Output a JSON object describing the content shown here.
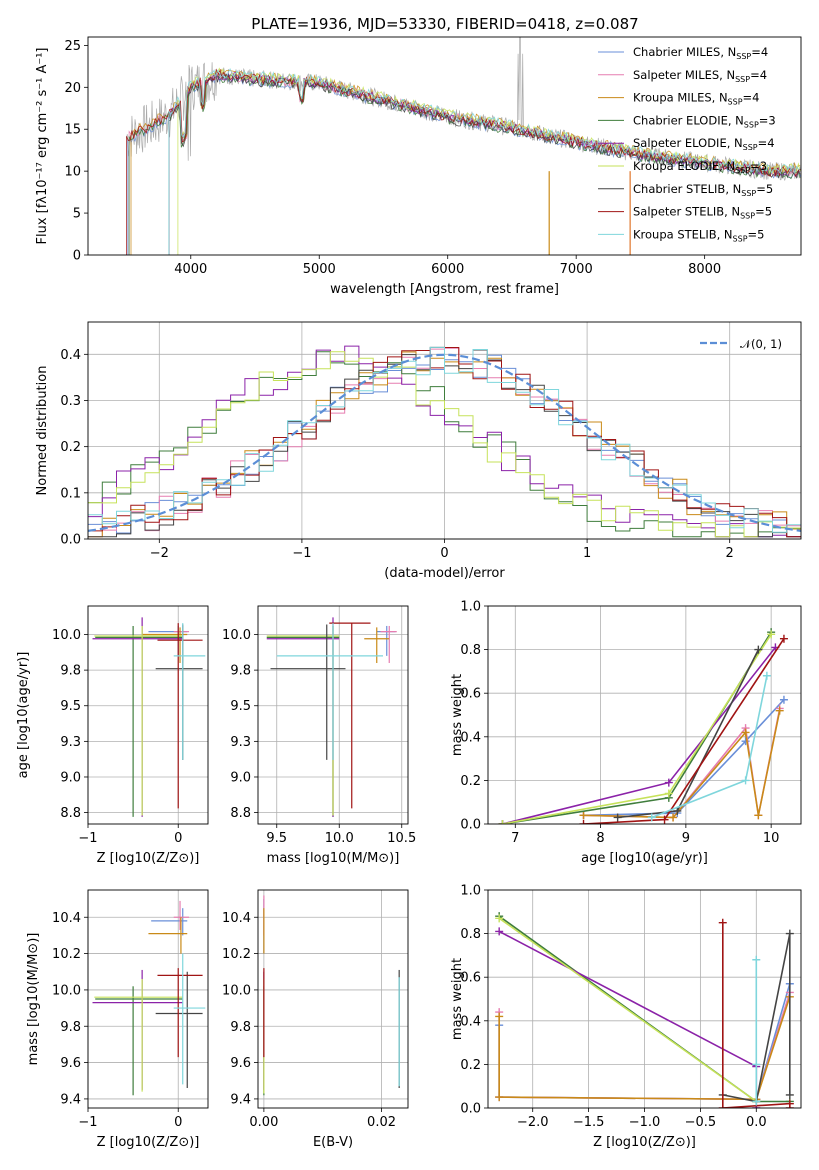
{
  "figure": {
    "title": "PLATE=1936, MJD=53330, FIBERID=0418, z=0.087"
  },
  "series_styles": [
    {
      "name": "Chabrier MILES",
      "nssp": "4",
      "color": "#6a8fd8"
    },
    {
      "name": "Salpeter MILES",
      "nssp": "4",
      "color": "#e67db0"
    },
    {
      "name": "Kroupa MILES",
      "nssp": "4",
      "color": "#c98a18"
    },
    {
      "name": "Chabrier ELODIE",
      "nssp": "3",
      "color": "#3f7d3c"
    },
    {
      "name": "Salpeter ELODIE",
      "nssp": "4",
      "color": "#8b22a8"
    },
    {
      "name": "Kroupa ELODIE",
      "nssp": "3",
      "color": "#c6e25a"
    },
    {
      "name": "Chabrier STELIB",
      "nssp": "5",
      "color": "#444444"
    },
    {
      "name": "Salpeter STELIB",
      "nssp": "5",
      "color": "#a01414"
    },
    {
      "name": "Kroupa STELIB",
      "nssp": "5",
      "color": "#7fd6dc"
    }
  ],
  "chart_data": [
    {
      "id": "spectrum",
      "type": "line",
      "xlabel": "wavelength [Angstrom, rest frame]",
      "ylabel": "Flux [fλ10⁻¹⁷ erg cm⁻² s⁻¹ A⁻¹]",
      "xlim": [
        3200,
        8750
      ],
      "ylim": [
        0,
        26
      ],
      "xticks": [
        4000,
        5000,
        6000,
        7000,
        8000
      ],
      "yticks": [
        0,
        5,
        10,
        15,
        20,
        25
      ],
      "grid": false,
      "legend": "upper right",
      "observed_color": "#aaaaaa",
      "continuum": [
        [
          3500,
          14
        ],
        [
          3700,
          15.5
        ],
        [
          3850,
          17
        ],
        [
          4000,
          20
        ],
        [
          4200,
          21.5
        ],
        [
          4500,
          21
        ],
        [
          5000,
          20.5
        ],
        [
          5500,
          18.5
        ],
        [
          6000,
          16.5
        ],
        [
          6500,
          15.2
        ],
        [
          7000,
          13.5
        ],
        [
          7500,
          12
        ],
        [
          8000,
          11
        ],
        [
          8500,
          10
        ]
      ]
    },
    {
      "id": "residuals",
      "type": "line",
      "xlabel": "(data-model)/error",
      "ylabel": "Normed distribution",
      "xlim": [
        -2.5,
        2.5
      ],
      "ylim": [
        0,
        0.47
      ],
      "xticks": [
        -2,
        -1,
        0,
        1,
        2
      ],
      "yticks": [
        0.0,
        0.1,
        0.2,
        0.3,
        0.4
      ],
      "grid": true,
      "legend": "upper right",
      "reference": {
        "label": "𝒩(0, 1)",
        "color": "#5b8ed6",
        "mean": 0,
        "sigma": 1
      }
    },
    {
      "id": "age-Z",
      "type": "scatter",
      "xlabel": "Z [log10(Z/Z⊙)]",
      "ylabel": "age  [log10(age/yr)]",
      "xlim": [
        -1.0,
        0.33
      ],
      "ylim": [
        8.67,
        10.2
      ],
      "xticks": [
        -1,
        0
      ],
      "yticks": [
        8.75,
        9.0,
        9.25,
        9.5,
        9.75,
        10.0
      ],
      "grid": true,
      "points": [
        {
          "s": 0,
          "x": 0.0,
          "y": 10.02,
          "x0": -0.33,
          "x1": 0.1,
          "y0": 9.85,
          "y1": 10.06
        },
        {
          "s": 1,
          "x": 0.05,
          "y": 10.02,
          "x0": -0.05,
          "x1": 0.12,
          "y0": 9.8,
          "y1": 10.06
        },
        {
          "s": 2,
          "x": 0.02,
          "y": 10.0,
          "x0": -0.4,
          "x1": 0.1,
          "y0": 9.8,
          "y1": 10.05
        },
        {
          "s": 3,
          "x": -0.5,
          "y": 9.98,
          "x0": -0.92,
          "x1": 0.05,
          "y0": 8.72,
          "y1": 10.06
        },
        {
          "s": 4,
          "x": -0.4,
          "y": 9.97,
          "x0": -0.95,
          "x1": 0.05,
          "y0": 8.72,
          "y1": 10.12
        },
        {
          "s": 5,
          "x": -0.4,
          "y": 9.99,
          "x0": -0.93,
          "x1": 0.05,
          "y0": 8.73,
          "y1": 10.06
        },
        {
          "s": 6,
          "x": 0.05,
          "y": 9.76,
          "x0": -0.25,
          "x1": 0.27,
          "y0": 9.12,
          "y1": 10.07
        },
        {
          "s": 7,
          "x": 0.0,
          "y": 9.96,
          "x0": -0.23,
          "x1": 0.27,
          "y0": 8.78,
          "y1": 10.08
        },
        {
          "s": 8,
          "x": 0.05,
          "y": 9.85,
          "x0": -0.05,
          "x1": 0.3,
          "y0": 9.12,
          "y1": 10.08
        }
      ]
    },
    {
      "id": "age-mass",
      "type": "scatter",
      "xlabel": "mass [log10(M/M⊙)]",
      "ylabel": "",
      "xlim": [
        9.35,
        10.55
      ],
      "ylim": [
        8.67,
        10.2
      ],
      "xticks": [
        9.5,
        10.0,
        10.5
      ],
      "yticks": [
        8.75,
        9.0,
        9.25,
        9.5,
        9.75,
        10.0
      ],
      "grid": true,
      "points": [
        {
          "s": 0,
          "x": 10.38,
          "y": 10.02,
          "x0": 10.3,
          "x1": 10.45,
          "y0": 9.85,
          "y1": 10.06
        },
        {
          "s": 1,
          "x": 10.4,
          "y": 10.02,
          "x0": 10.33,
          "x1": 10.46,
          "y0": 9.8,
          "y1": 10.06
        },
        {
          "s": 2,
          "x": 10.3,
          "y": 9.97,
          "x0": 10.2,
          "x1": 10.4,
          "y0": 9.8,
          "y1": 10.05
        },
        {
          "s": 3,
          "x": 9.95,
          "y": 9.98,
          "x0": 9.42,
          "x1": 10.0,
          "y0": 8.72,
          "y1": 10.06
        },
        {
          "s": 4,
          "x": 9.95,
          "y": 9.97,
          "x0": 9.42,
          "x1": 10.0,
          "y0": 8.72,
          "y1": 10.12
        },
        {
          "s": 5,
          "x": 9.95,
          "y": 9.99,
          "x0": 9.42,
          "x1": 10.0,
          "y0": 8.73,
          "y1": 10.06
        },
        {
          "s": 6,
          "x": 9.9,
          "y": 9.76,
          "x0": 9.45,
          "x1": 10.05,
          "y0": 9.12,
          "y1": 10.07
        },
        {
          "s": 7,
          "x": 10.1,
          "y": 10.08,
          "x0": 9.92,
          "x1": 10.25,
          "y0": 8.78,
          "y1": 10.08
        },
        {
          "s": 8,
          "x": 9.95,
          "y": 9.85,
          "x0": 9.5,
          "x1": 10.35,
          "y0": 9.12,
          "y1": 10.08
        }
      ]
    },
    {
      "id": "weight-age",
      "type": "line",
      "xlabel": "age  [log10(age/yr)]",
      "ylabel": "mass weight",
      "xlim": [
        6.68,
        10.35
      ],
      "ylim": [
        0,
        1.0
      ],
      "xticks": [
        7,
        8,
        9,
        10
      ],
      "yticks": [
        0.0,
        0.2,
        0.4,
        0.6,
        0.8,
        1.0
      ],
      "grid": true,
      "series": [
        {
          "s": 0,
          "x": [
            7.8,
            8.9,
            9.7,
            10.15
          ],
          "y": [
            0.04,
            0.05,
            0.38,
            0.57
          ]
        },
        {
          "s": 1,
          "x": [
            7.8,
            8.85,
            9.7,
            9.85,
            10.1
          ],
          "y": [
            0.04,
            0.03,
            0.44,
            0.04,
            0.53
          ]
        },
        {
          "s": 2,
          "x": [
            7.8,
            8.85,
            9.7,
            9.85,
            10.1
          ],
          "y": [
            0.04,
            0.03,
            0.42,
            0.04,
            0.52
          ]
        },
        {
          "s": 3,
          "x": [
            6.85,
            8.8,
            10.0
          ],
          "y": [
            0.0,
            0.12,
            0.88
          ]
        },
        {
          "s": 4,
          "x": [
            6.85,
            8.8,
            10.05
          ],
          "y": [
            0.0,
            0.19,
            0.81
          ]
        },
        {
          "s": 5,
          "x": [
            6.85,
            8.8,
            10.0
          ],
          "y": [
            0.0,
            0.14,
            0.87
          ]
        },
        {
          "s": 6,
          "x": [
            8.2,
            8.9,
            9.85
          ],
          "y": [
            0.03,
            0.06,
            0.8
          ]
        },
        {
          "s": 7,
          "x": [
            7.8,
            8.75,
            10.15
          ],
          "y": [
            0.0,
            0.02,
            0.85
          ]
        },
        {
          "s": 8,
          "x": [
            8.6,
            9.7,
            9.95
          ],
          "y": [
            0.03,
            0.2,
            0.68
          ]
        }
      ]
    },
    {
      "id": "mass-Z",
      "type": "scatter",
      "xlabel": "Z [log10(Z/Z⊙)]",
      "ylabel": "mass [log10(M/M⊙)]",
      "xlim": [
        -1.0,
        0.33
      ],
      "ylim": [
        9.35,
        10.55
      ],
      "xticks": [
        -1,
        0
      ],
      "yticks": [
        9.4,
        9.6,
        9.8,
        10.0,
        10.2,
        10.4
      ],
      "grid": true,
      "points": [
        {
          "s": 0,
          "x": 0.05,
          "y": 10.38,
          "x0": -0.3,
          "x1": 0.1,
          "y0": 10.3,
          "y1": 10.45
        },
        {
          "s": 1,
          "x": 0.02,
          "y": 10.4,
          "x0": -0.05,
          "x1": 0.12,
          "y0": 10.33,
          "y1": 10.49
        },
        {
          "s": 2,
          "x": 0.03,
          "y": 10.31,
          "x0": -0.33,
          "x1": 0.1,
          "y0": 10.2,
          "y1": 10.4
        },
        {
          "s": 3,
          "x": -0.5,
          "y": 9.95,
          "x0": -0.92,
          "x1": 0.05,
          "y0": 9.42,
          "y1": 10.02
        },
        {
          "s": 4,
          "x": -0.4,
          "y": 9.93,
          "x0": -0.95,
          "x1": 0.05,
          "y0": 9.45,
          "y1": 10.11
        },
        {
          "s": 5,
          "x": -0.4,
          "y": 9.96,
          "x0": -0.93,
          "x1": 0.05,
          "y0": 9.44,
          "y1": 10.06
        },
        {
          "s": 6,
          "x": 0.1,
          "y": 9.87,
          "x0": -0.25,
          "x1": 0.27,
          "y0": 9.46,
          "y1": 10.1
        },
        {
          "s": 7,
          "x": 0.0,
          "y": 10.08,
          "x0": -0.23,
          "x1": 0.27,
          "y0": 9.63,
          "y1": 10.12
        },
        {
          "s": 8,
          "x": 0.05,
          "y": 9.9,
          "x0": -0.05,
          "x1": 0.3,
          "y0": 9.48,
          "y1": 10.2
        }
      ]
    },
    {
      "id": "mass-ebv",
      "type": "scatter",
      "xlabel": "E(B-V)",
      "ylabel": "",
      "xlim": [
        -0.001,
        0.0245
      ],
      "ylim": [
        9.35,
        10.55
      ],
      "xticks": [
        0.0,
        0.02
      ],
      "yticks": [
        9.4,
        9.6,
        9.8,
        10.0,
        10.2,
        10.4
      ],
      "grid": true,
      "points": [
        {
          "s": 0,
          "x": 0.0,
          "y": 10.38,
          "x0": 0.0,
          "x1": 0.0,
          "y0": 10.2,
          "y1": 10.5
        },
        {
          "s": 1,
          "x": 0.0,
          "y": 10.4,
          "x0": 0.0,
          "x1": 0.0,
          "y0": 10.3,
          "y1": 10.52
        },
        {
          "s": 2,
          "x": 0.0,
          "y": 10.3,
          "x0": 0.0,
          "x1": 0.0,
          "y0": 10.2,
          "y1": 10.45
        },
        {
          "s": 3,
          "x": 0.0,
          "y": 9.9,
          "x0": 0.0,
          "x1": 0.0,
          "y0": 9.42,
          "y1": 10.02
        },
        {
          "s": 4,
          "x": 0.0,
          "y": 9.9,
          "x0": 0.0,
          "x1": 0.0,
          "y0": 9.45,
          "y1": 10.1
        },
        {
          "s": 5,
          "x": 0.0,
          "y": 9.9,
          "x0": 0.0,
          "x1": 0.0,
          "y0": 9.43,
          "y1": 10.06
        },
        {
          "s": 6,
          "x": 0.023,
          "y": 9.8,
          "x0": 0.023,
          "x1": 0.023,
          "y0": 9.46,
          "y1": 10.11
        },
        {
          "s": 7,
          "x": 0.0,
          "y": 9.9,
          "x0": 0.0,
          "x1": 0.0,
          "y0": 9.63,
          "y1": 10.12
        },
        {
          "s": 8,
          "x": 0.023,
          "y": 9.8,
          "x0": 0.023,
          "x1": 0.023,
          "y0": 9.47,
          "y1": 10.07
        }
      ]
    },
    {
      "id": "weight-Z",
      "type": "line",
      "xlabel": "Z [log10(Z/Z⊙)]",
      "ylabel": "mass weight",
      "xlim": [
        -2.4,
        0.4
      ],
      "ylim": [
        0,
        1.0
      ],
      "xticks": [
        -2.0,
        -1.5,
        -1.0,
        -0.5,
        0.0
      ],
      "yticks": [
        0.0,
        0.2,
        0.4,
        0.6,
        0.8,
        1.0
      ],
      "grid": true,
      "series": [
        {
          "s": 0,
          "x": [
            -2.3,
            -2.3,
            0.0,
            0.3
          ],
          "y": [
            0.38,
            0.05,
            0.04,
            0.57
          ]
        },
        {
          "s": 1,
          "x": [
            -2.3,
            -2.3,
            0.0,
            0.3
          ],
          "y": [
            0.44,
            0.05,
            0.04,
            0.53
          ]
        },
        {
          "s": 2,
          "x": [
            -2.3,
            -2.3,
            0.0,
            0.3
          ],
          "y": [
            0.42,
            0.05,
            0.04,
            0.51
          ]
        },
        {
          "s": 3,
          "x": [
            -2.3,
            0.0,
            0.3
          ],
          "y": [
            0.88,
            0.03,
            0.03
          ]
        },
        {
          "s": 4,
          "x": [
            -2.3,
            0.0,
            0.0
          ],
          "y": [
            0.81,
            0.19,
            0.0
          ]
        },
        {
          "s": 5,
          "x": [
            -2.3,
            0.0,
            0.0
          ],
          "y": [
            0.87,
            0.03,
            0.03
          ]
        },
        {
          "s": 6,
          "x": [
            -0.3,
            0.0,
            0.3,
            0.3
          ],
          "y": [
            0.06,
            0.03,
            0.8,
            0.06
          ]
        },
        {
          "s": 7,
          "x": [
            -0.3,
            -0.3,
            0.3,
            0.3
          ],
          "y": [
            0.85,
            0.0,
            0.02,
            0.0
          ]
        },
        {
          "s": 8,
          "x": [
            0.0,
            0.0,
            0.0
          ],
          "y": [
            0.68,
            0.03,
            0.2
          ]
        }
      ]
    }
  ]
}
